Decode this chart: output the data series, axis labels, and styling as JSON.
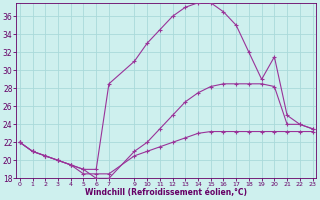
{
  "xlabel": "Windchill (Refroidissement éolien,°C)",
  "bg_color": "#cef0ee",
  "grid_color": "#aadada",
  "line_color": "#993399",
  "line1_x": [
    0,
    1,
    2,
    3,
    4,
    5,
    6,
    7,
    9,
    10,
    11,
    12,
    13,
    14,
    15,
    16,
    17,
    18,
    19,
    20,
    21,
    22,
    23
  ],
  "line1_y": [
    22.0,
    21.0,
    20.5,
    20.0,
    19.5,
    18.5,
    18.5,
    18.5,
    20.5,
    21.0,
    21.5,
    22.0,
    22.5,
    23.0,
    23.2,
    23.2,
    23.2,
    23.2,
    23.2,
    23.2,
    23.2,
    23.2,
    23.2
  ],
  "line2_x": [
    0,
    1,
    2,
    3,
    4,
    5,
    6,
    7,
    9,
    10,
    11,
    12,
    13,
    14,
    15,
    16,
    17,
    18,
    19,
    20,
    21,
    22,
    23
  ],
  "line2_y": [
    22.0,
    21.0,
    20.5,
    20.0,
    19.5,
    19.0,
    18.0,
    18.0,
    21.0,
    22.0,
    23.5,
    25.0,
    26.5,
    27.5,
    28.2,
    28.5,
    28.5,
    28.5,
    28.5,
    28.2,
    24.0,
    24.0,
    23.5
  ],
  "line3_x": [
    0,
    1,
    2,
    3,
    4,
    5,
    6,
    7,
    9,
    10,
    11,
    12,
    13,
    14,
    15,
    16,
    17,
    18,
    19,
    20,
    21,
    22,
    23
  ],
  "line3_y": [
    22.0,
    21.0,
    20.5,
    20.0,
    19.5,
    19.0,
    19.0,
    28.5,
    31.0,
    33.0,
    34.5,
    36.0,
    37.0,
    37.5,
    37.5,
    36.5,
    35.0,
    32.0,
    29.0,
    31.5,
    25.0,
    24.0,
    23.5
  ],
  "ylim": [
    18.0,
    37.5
  ],
  "xlim": [
    -0.3,
    23.3
  ],
  "yticks": [
    18,
    20,
    22,
    24,
    26,
    28,
    30,
    32,
    34,
    36
  ],
  "xticks": [
    0,
    1,
    2,
    3,
    4,
    5,
    6,
    7,
    9,
    10,
    11,
    12,
    13,
    14,
    15,
    16,
    17,
    18,
    19,
    20,
    21,
    22,
    23
  ],
  "tick_fontsize": 5.5,
  "xlabel_fontsize": 5.5
}
